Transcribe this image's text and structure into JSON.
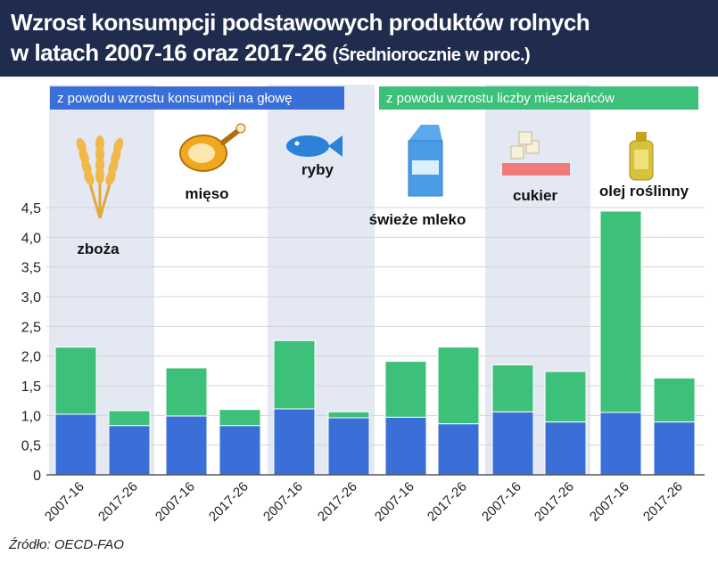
{
  "header": {
    "title_line1": "Wzrost konsumpcji podstawowych produktów rolnych",
    "title_line2": "w latach 2007-16 oraz 2017-26",
    "subtitle": "(Średniorocznie w proc.)"
  },
  "legend": [
    {
      "label": "z powodu wzrostu konsumpcji na głowę",
      "color": "#3a6fd8"
    },
    {
      "label": "z powodu wzrostu liczby mieszkańców",
      "color": "#3cc07a"
    }
  ],
  "groups": [
    {
      "label": "zboża",
      "icon": "wheat-icon"
    },
    {
      "label": "mięso",
      "icon": "ham-icon"
    },
    {
      "label": "ryby",
      "icon": "fish-icon"
    },
    {
      "label": "świeże mleko",
      "icon": "milk-carton-icon"
    },
    {
      "label": "cukier",
      "icon": "sugar-cubes-icon"
    },
    {
      "label": "olej roślinny",
      "icon": "oil-bottle-icon"
    }
  ],
  "source": "Źródło: OECD-FAO",
  "colors": {
    "header": "#1f2c4d",
    "per_capita": "#3a6fd8",
    "population": "#3cc07a",
    "band": "#e4e8f3"
  },
  "chart_data": {
    "type": "bar",
    "stacked": true,
    "categories": [
      "2007-16",
      "2017-26",
      "2007-16",
      "2017-26",
      "2007-16",
      "2017-26",
      "2007-16",
      "2017-26",
      "2007-16",
      "2017-26",
      "2007-16",
      "2017-26"
    ],
    "series": [
      {
        "name": "z powodu wzrostu konsumpcji na głowę",
        "values": [
          1.02,
          0.83,
          0.99,
          0.83,
          1.11,
          0.96,
          0.97,
          0.86,
          1.06,
          0.89,
          1.05,
          0.89
        ]
      },
      {
        "name": "z powodu wzrostu liczby mieszkańców",
        "values": [
          1.13,
          0.25,
          0.81,
          0.27,
          1.15,
          0.1,
          0.94,
          1.29,
          0.79,
          0.85,
          3.39,
          0.74
        ]
      }
    ],
    "ylim": [
      0,
      4.5
    ],
    "yticks": [
      "0",
      "0,5",
      "1,0",
      "1,5",
      "2,0",
      "2,5",
      "3,0",
      "3,5",
      "4,0",
      "4,5"
    ],
    "ylabel": "",
    "xlabel": ""
  }
}
